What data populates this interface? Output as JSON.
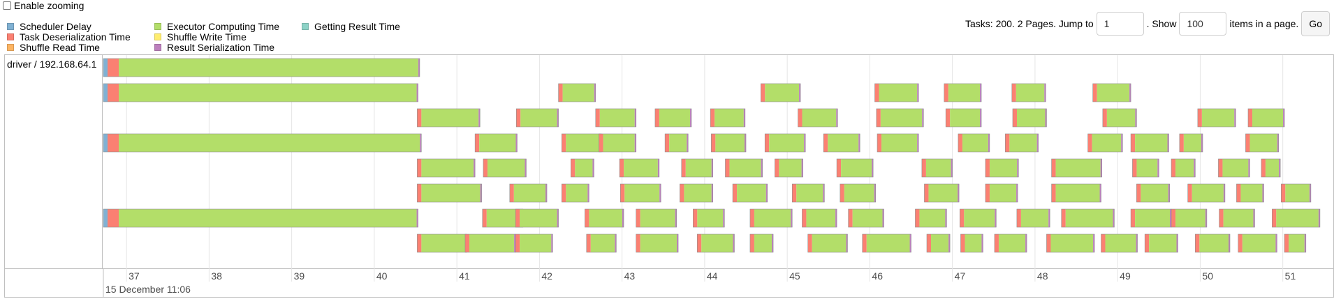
{
  "zoom": {
    "label": "Enable zooming",
    "checked": false
  },
  "legend": [
    {
      "label": "Scheduler Delay",
      "color": "#80b1d3"
    },
    {
      "label": "Task Deserialization Time",
      "color": "#fb8072"
    },
    {
      "label": "Shuffle Read Time",
      "color": "#fdb462"
    },
    {
      "label": "Executor Computing Time",
      "color": "#b3de69"
    },
    {
      "label": "Shuffle Write Time",
      "color": "#ffed6f"
    },
    {
      "label": "Result Serialization Time",
      "color": "#bc80bd"
    },
    {
      "label": "Getting Result Time",
      "color": "#8dd3c7"
    }
  ],
  "pager": {
    "prefix": "Tasks: 200. 2 Pages. Jump to",
    "page_value": "1",
    "middle": ". Show",
    "size_value": "100",
    "suffix": "items in a page.",
    "go_label": "Go"
  },
  "group": {
    "label": "driver / 192.168.64.1"
  },
  "axis": {
    "minor_labels": [
      "37",
      "38",
      "39",
      "40",
      "41",
      "42",
      "43",
      "44",
      "45",
      "46",
      "47",
      "48",
      "49",
      "50",
      "51"
    ],
    "major_label": "15 December 11:06",
    "start": 36.72,
    "end": 51.62
  },
  "task_rows": [
    [
      [
        36.72,
        40.55,
        "s"
      ]
    ],
    [
      [
        36.72,
        40.53,
        "s"
      ],
      [
        42.23,
        42.68
      ],
      [
        44.68,
        45.16
      ],
      [
        46.06,
        46.59
      ],
      [
        46.9,
        47.35
      ],
      [
        47.72,
        48.13
      ],
      [
        48.7,
        49.16
      ]
    ],
    [
      [
        40.52,
        41.28
      ],
      [
        41.72,
        42.23
      ],
      [
        42.68,
        43.17
      ],
      [
        43.4,
        43.84
      ],
      [
        44.07,
        44.49
      ],
      [
        45.13,
        45.61
      ],
      [
        46.08,
        46.65
      ],
      [
        46.92,
        47.35
      ],
      [
        47.73,
        48.14
      ],
      [
        48.82,
        49.23
      ],
      [
        49.97,
        50.43
      ],
      [
        50.58,
        51.02
      ]
    ],
    [
      [
        36.72,
        40.57,
        "s"
      ],
      [
        41.22,
        41.73
      ],
      [
        42.27,
        42.75
      ],
      [
        42.72,
        43.17
      ],
      [
        43.52,
        43.8
      ],
      [
        44.08,
        44.5
      ],
      [
        44.73,
        45.22
      ],
      [
        45.44,
        45.88
      ],
      [
        46.09,
        46.59
      ],
      [
        47.07,
        47.45
      ],
      [
        47.64,
        48.04
      ],
      [
        48.64,
        49.06
      ],
      [
        49.16,
        49.62
      ],
      [
        49.75,
        50.03
      ],
      [
        50.55,
        50.95
      ]
    ],
    [
      [
        40.52,
        41.22
      ],
      [
        41.32,
        41.84
      ],
      [
        42.38,
        42.66
      ],
      [
        42.97,
        43.45
      ],
      [
        43.72,
        44.1
      ],
      [
        44.25,
        44.7
      ],
      [
        44.85,
        45.19
      ],
      [
        45.6,
        46.04
      ],
      [
        46.63,
        47.0
      ],
      [
        47.4,
        47.8
      ],
      [
        48.2,
        48.81
      ],
      [
        49.18,
        49.5
      ],
      [
        49.65,
        49.94
      ],
      [
        50.22,
        50.6
      ],
      [
        50.74,
        50.97
      ]
    ],
    [
      [
        40.52,
        41.3
      ],
      [
        41.64,
        42.09
      ],
      [
        42.27,
        42.6
      ],
      [
        42.98,
        43.47
      ],
      [
        43.7,
        44.1
      ],
      [
        44.34,
        44.76
      ],
      [
        45.06,
        45.45
      ],
      [
        45.64,
        46.07
      ],
      [
        46.66,
        47.08
      ],
      [
        47.4,
        47.79
      ],
      [
        48.2,
        48.8
      ],
      [
        49.23,
        49.63
      ],
      [
        49.85,
        50.3
      ],
      [
        50.44,
        50.77
      ],
      [
        50.98,
        51.34
      ]
    ],
    [
      [
        36.72,
        40.53,
        "s"
      ],
      [
        41.31,
        41.8
      ],
      [
        41.71,
        42.23
      ],
      [
        42.55,
        43.02
      ],
      [
        43.17,
        43.66
      ],
      [
        43.86,
        44.24
      ],
      [
        44.55,
        45.06
      ],
      [
        45.18,
        45.6
      ],
      [
        45.74,
        46.17
      ],
      [
        46.55,
        46.93
      ],
      [
        47.09,
        47.53
      ],
      [
        47.78,
        48.18
      ],
      [
        48.32,
        48.96
      ],
      [
        49.16,
        49.65
      ],
      [
        49.65,
        50.08
      ],
      [
        50.23,
        50.66
      ],
      [
        50.87,
        51.45
      ]
    ],
    [
      [
        40.52,
        41.12
      ],
      [
        41.1,
        41.71
      ],
      [
        41.71,
        42.16
      ],
      [
        42.57,
        42.93
      ],
      [
        43.17,
        43.68
      ],
      [
        43.91,
        44.36
      ],
      [
        44.55,
        44.83
      ],
      [
        45.25,
        45.73
      ],
      [
        45.91,
        46.5
      ],
      [
        46.69,
        46.97
      ],
      [
        47.1,
        47.37
      ],
      [
        47.51,
        47.9
      ],
      [
        48.14,
        48.72
      ],
      [
        48.8,
        49.24
      ],
      [
        49.33,
        49.73
      ],
      [
        49.94,
        50.36
      ],
      [
        50.46,
        50.93
      ],
      [
        51.02,
        51.28
      ]
    ]
  ]
}
